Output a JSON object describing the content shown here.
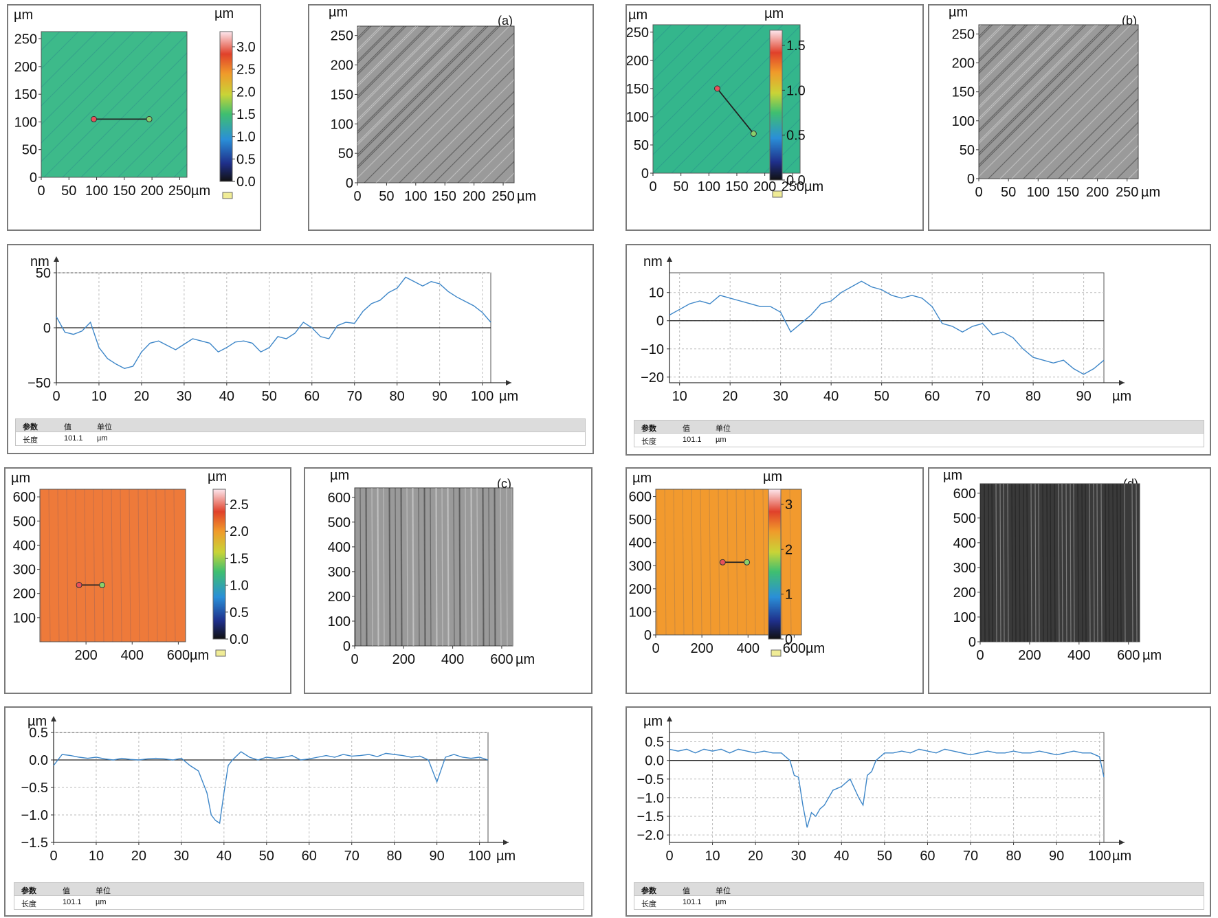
{
  "panels": [
    {
      "id": "a",
      "letter": "(a)",
      "height_map": {
        "unit_y": "µm",
        "unit_x": "µm",
        "cbar_unit": "µm",
        "x_ticks": [
          "0",
          "50",
          "100",
          "150",
          "200",
          "250"
        ],
        "y_ticks": [
          "0",
          "50",
          "100",
          "150",
          "200",
          "250"
        ],
        "cbar_ticks": [
          "0.0",
          "0.5",
          "1.0",
          "1.5",
          "2.0",
          "2.5",
          "3.0"
        ],
        "fill_color": "#3dba8a",
        "profile_line": {
          "x1": 95,
          "y1": 105,
          "x2": 195,
          "y2": 105
        }
      },
      "optical": {
        "unit_y": "µm",
        "unit_x": "µm",
        "x_ticks": [
          "0",
          "50",
          "100",
          "150",
          "200",
          "250"
        ],
        "y_ticks": [
          "0",
          "50",
          "100",
          "150",
          "200",
          "250"
        ]
      },
      "chart_data": {
        "type": "line",
        "title": "",
        "xlabel": "µm",
        "ylabel": "nm",
        "xlim": [
          0,
          102
        ],
        "ylim": [
          -50,
          50
        ],
        "x_ticks": [
          "0",
          "10",
          "20",
          "30",
          "40",
          "50",
          "60",
          "70",
          "80",
          "90",
          "100"
        ],
        "y_ticks": [
          "50",
          "0",
          "−50"
        ],
        "y_tick_values": [
          50,
          0,
          -50
        ],
        "x_tick_values": [
          0,
          10,
          20,
          30,
          40,
          50,
          60,
          70,
          80,
          90,
          100
        ],
        "series": [
          {
            "x": [
              0,
              2,
              4,
              6,
              8,
              10,
              12,
              14,
              16,
              18,
              20,
              22,
              24,
              26,
              28,
              30,
              32,
              34,
              36,
              38,
              40,
              42,
              44,
              46,
              48,
              50,
              52,
              54,
              56,
              58,
              60,
              62,
              64,
              66,
              68,
              70,
              72,
              74,
              76,
              78,
              80,
              82,
              84,
              86,
              88,
              90,
              92,
              94,
              96,
              98,
              100,
              102
            ],
            "values": [
              10,
              -4,
              -6,
              -3,
              5,
              -18,
              -28,
              -33,
              -37,
              -35,
              -22,
              -14,
              -12,
              -16,
              -20,
              -15,
              -10,
              -12,
              -14,
              -22,
              -18,
              -13,
              -12,
              -14,
              -22,
              -18,
              -8,
              -10,
              -5,
              5,
              0,
              -8,
              -10,
              2,
              5,
              4,
              15,
              22,
              25,
              32,
              36,
              46,
              42,
              38,
              42,
              40,
              33,
              28,
              24,
              20,
              14,
              5
            ]
          }
        ]
      },
      "table": {
        "headers": [
          "参数",
          "值",
          "单位"
        ],
        "row": [
          "长度",
          "101.1",
          "µm"
        ]
      }
    },
    {
      "id": "b",
      "letter": "(b)",
      "height_map": {
        "unit_y": "µm",
        "unit_x": "µm",
        "cbar_unit": "µm",
        "x_ticks": [
          "0",
          "50",
          "100",
          "150",
          "200",
          "250"
        ],
        "y_ticks": [
          "0",
          "50",
          "100",
          "150",
          "200",
          "250"
        ],
        "cbar_ticks": [
          "0.0",
          "0.5",
          "1.0",
          "1.5"
        ],
        "fill_color": "#34b68c",
        "profile_line": {
          "x1": 115,
          "y1": 150,
          "x2": 180,
          "y2": 70
        }
      },
      "optical": {
        "unit_y": "µm",
        "unit_x": "µm",
        "x_ticks": [
          "0",
          "50",
          "100",
          "150",
          "200",
          "250"
        ],
        "y_ticks": [
          "0",
          "50",
          "100",
          "150",
          "200",
          "250"
        ]
      },
      "chart_data": {
        "type": "line",
        "title": "",
        "xlabel": "µm",
        "ylabel": "nm",
        "xlim": [
          8,
          94
        ],
        "ylim": [
          -22,
          17
        ],
        "x_ticks": [
          "10",
          "20",
          "30",
          "40",
          "50",
          "60",
          "70",
          "80",
          "90"
        ],
        "x_tick_values": [
          10,
          20,
          30,
          40,
          50,
          60,
          70,
          80,
          90
        ],
        "y_ticks": [
          "10",
          "0",
          "−10",
          "−20"
        ],
        "y_tick_values": [
          10,
          0,
          -10,
          -20
        ],
        "series": [
          {
            "x": [
              8,
              10,
              12,
              14,
              16,
              18,
              20,
              22,
              24,
              26,
              28,
              30,
              32,
              34,
              36,
              38,
              40,
              42,
              44,
              46,
              48,
              50,
              52,
              54,
              56,
              58,
              60,
              62,
              64,
              66,
              68,
              70,
              72,
              74,
              76,
              78,
              80,
              82,
              84,
              86,
              88,
              90,
              92,
              94
            ],
            "values": [
              2,
              4,
              6,
              7,
              6,
              9,
              8,
              7,
              6,
              5,
              5,
              3,
              -4,
              -1,
              2,
              6,
              7,
              10,
              12,
              14,
              12,
              11,
              9,
              8,
              9,
              8,
              5,
              -1,
              -2,
              -4,
              -2,
              -1,
              -5,
              -4,
              -6,
              -10,
              -13,
              -14,
              -15,
              -14,
              -17,
              -19,
              -17,
              -14
            ]
          }
        ]
      },
      "table": {
        "headers": [
          "参数",
          "值",
          "单位"
        ],
        "row": [
          "长度",
          "101.1",
          "µm"
        ]
      }
    },
    {
      "id": "c",
      "letter": "(c)",
      "height_map": {
        "unit_y": "µm",
        "unit_x": "µm",
        "cbar_unit": "µm",
        "x_ticks": [
          "200",
          "400",
          "600"
        ],
        "y_ticks": [
          "100",
          "200",
          "300",
          "400",
          "500",
          "600"
        ],
        "cbar_ticks": [
          "0.0",
          "0.5",
          "1.0",
          "1.5",
          "2.0",
          "2.5"
        ],
        "fill_color": "#ee7a3a",
        "profile_line": {
          "x1": 170,
          "y1": 235,
          "x2": 270,
          "y2": 235
        }
      },
      "optical": {
        "unit_y": "µm",
        "unit_x": "µm",
        "x_ticks": [
          "0",
          "200",
          "400",
          "600"
        ],
        "y_ticks": [
          "0",
          "100",
          "200",
          "300",
          "400",
          "500",
          "600"
        ]
      },
      "chart_data": {
        "type": "line",
        "title": "",
        "xlabel": "µm",
        "ylabel": "µm",
        "xlim": [
          0,
          102
        ],
        "ylim": [
          -1.5,
          0.5
        ],
        "x_ticks": [
          "0",
          "10",
          "20",
          "30",
          "40",
          "50",
          "60",
          "70",
          "80",
          "90",
          "100"
        ],
        "x_tick_values": [
          0,
          10,
          20,
          30,
          40,
          50,
          60,
          70,
          80,
          90,
          100
        ],
        "y_ticks": [
          "0.5",
          "0.0",
          "−0.5",
          "−1.0",
          "−1.5"
        ],
        "y_tick_values": [
          0.5,
          0,
          -0.5,
          -1.0,
          -1.5
        ],
        "series": [
          {
            "x": [
              0,
              2,
              4,
              6,
              8,
              10,
              12,
              14,
              16,
              18,
              20,
              22,
              24,
              26,
              28,
              30,
              32,
              34,
              35,
              36,
              37,
              38,
              39,
              40,
              41,
              42,
              44,
              46,
              48,
              50,
              52,
              54,
              56,
              58,
              60,
              62,
              64,
              66,
              68,
              70,
              72,
              74,
              76,
              78,
              80,
              82,
              84,
              86,
              88,
              90,
              92,
              94,
              96,
              98,
              100,
              102
            ],
            "values": [
              -0.1,
              0.1,
              0.08,
              0.05,
              0.03,
              0.05,
              0.02,
              0.0,
              0.03,
              0.01,
              0.0,
              0.02,
              0.03,
              0.02,
              0.0,
              0.03,
              -0.1,
              -0.2,
              -0.4,
              -0.6,
              -1.0,
              -1.1,
              -1.15,
              -0.6,
              -0.1,
              0.0,
              0.15,
              0.05,
              0.0,
              0.05,
              0.03,
              0.05,
              0.08,
              0.0,
              0.02,
              0.05,
              0.08,
              0.05,
              0.1,
              0.07,
              0.08,
              0.1,
              0.06,
              0.12,
              0.1,
              0.08,
              0.05,
              0.07,
              0.0,
              -0.4,
              0.05,
              0.1,
              0.05,
              0.03,
              0.05,
              0.0
            ]
          }
        ]
      },
      "table": {
        "headers": [
          "参数",
          "值",
          "单位"
        ],
        "row": [
          "长度",
          "101.1",
          "µm"
        ]
      }
    },
    {
      "id": "d",
      "letter": "(d)",
      "height_map": {
        "unit_y": "µm",
        "unit_x": "µm",
        "cbar_unit": "µm",
        "x_ticks": [
          "0",
          "200",
          "400",
          "600"
        ],
        "y_ticks": [
          "0",
          "100",
          "200",
          "300",
          "400",
          "500",
          "600"
        ],
        "cbar_ticks": [
          "0",
          "1",
          "2",
          "3"
        ],
        "fill_color": "#f29a2e",
        "profile_line": {
          "x1": 290,
          "y1": 315,
          "x2": 395,
          "y2": 315
        }
      },
      "optical": {
        "unit_y": "µm",
        "unit_x": "µm",
        "x_ticks": [
          "0",
          "200",
          "400",
          "600"
        ],
        "y_ticks": [
          "0",
          "100",
          "200",
          "300",
          "400",
          "500",
          "600"
        ]
      },
      "chart_data": {
        "type": "line",
        "title": "",
        "xlabel": "µm",
        "ylabel": "µm",
        "xlim": [
          0,
          101
        ],
        "ylim": [
          -2.2,
          0.75
        ],
        "x_ticks": [
          "0",
          "10",
          "20",
          "30",
          "40",
          "50",
          "60",
          "70",
          "80",
          "90",
          "100"
        ],
        "x_tick_values": [
          0,
          10,
          20,
          30,
          40,
          50,
          60,
          70,
          80,
          90,
          100
        ],
        "y_ticks": [
          "0.5",
          "0.0",
          "−0.5",
          "−1.0",
          "−1.5",
          "−2.0"
        ],
        "y_tick_values": [
          0.5,
          0,
          -0.5,
          -1.0,
          -1.5,
          -2.0
        ],
        "series": [
          {
            "x": [
              0,
              2,
              4,
              6,
              8,
              10,
              12,
              14,
              16,
              18,
              20,
              22,
              24,
              26,
              28,
              29,
              30,
              31,
              32,
              33,
              34,
              35,
              36,
              38,
              40,
              42,
              44,
              45,
              46,
              47,
              48,
              50,
              52,
              54,
              56,
              58,
              60,
              62,
              64,
              66,
              68,
              70,
              72,
              74,
              76,
              78,
              80,
              82,
              84,
              86,
              88,
              90,
              92,
              94,
              96,
              98,
              100,
              101
            ],
            "values": [
              0.3,
              0.25,
              0.3,
              0.2,
              0.3,
              0.25,
              0.3,
              0.2,
              0.3,
              0.25,
              0.2,
              0.25,
              0.2,
              0.2,
              0.0,
              -0.4,
              -0.45,
              -1.2,
              -1.8,
              -1.4,
              -1.5,
              -1.3,
              -1.2,
              -0.8,
              -0.7,
              -0.5,
              -1.0,
              -1.2,
              -0.4,
              -0.3,
              0.0,
              0.2,
              0.2,
              0.25,
              0.2,
              0.3,
              0.25,
              0.2,
              0.3,
              0.25,
              0.2,
              0.15,
              0.2,
              0.25,
              0.2,
              0.2,
              0.25,
              0.2,
              0.2,
              0.25,
              0.2,
              0.15,
              0.2,
              0.25,
              0.2,
              0.2,
              0.1,
              -0.45
            ]
          }
        ]
      },
      "table": {
        "headers": [
          "参数",
          "值",
          "单位"
        ],
        "row": [
          "长度",
          "101.1",
          "µm"
        ]
      }
    }
  ]
}
